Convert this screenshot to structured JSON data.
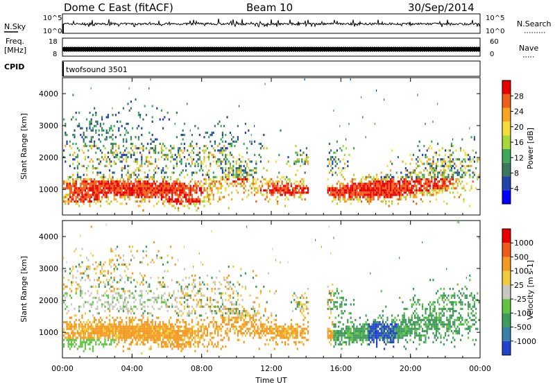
{
  "header": {
    "station": "Dome C East (fitACF)",
    "beam": "Beam 10",
    "date": "30/Sep/2014"
  },
  "noise_panel": {
    "left_label": "N.Sky",
    "right_label": "N.Search",
    "tick_top": "10^5",
    "tick_bottom": "10^0"
  },
  "freq_panel": {
    "left_label_1": "Freq.",
    "left_label_2": "[MHz]",
    "tick_top": "18",
    "tick_bottom": "8",
    "right_label": "Nave",
    "right_tick_top": "60",
    "right_tick_bottom": "0"
  },
  "cpid_panel": {
    "label": "CPID",
    "program": "twofsound 3501"
  },
  "chart_data": [
    {
      "type": "heatmap",
      "name": "power",
      "ylabel": "Slant Range [km]",
      "ylim": [
        200,
        4500
      ],
      "y_ticks": [
        1000,
        2000,
        3000,
        4000
      ],
      "colorbar_label": "Power [dB]",
      "colorbar_ticks": [
        "28",
        "24",
        "20",
        "16",
        "12",
        "8",
        "4"
      ],
      "colors": [
        "#0000ff",
        "#2244aa",
        "#3a7a5c",
        "#3fa65a",
        "#a6d838",
        "#f4dd3a",
        "#f6a623",
        "#f06018",
        "#e80000"
      ]
    },
    {
      "type": "heatmap",
      "name": "velocity",
      "ylabel": "Slant Range [km]",
      "ylim": [
        200,
        4500
      ],
      "y_ticks": [
        1000,
        2000,
        3000,
        4000
      ],
      "colorbar_label": "Velocity [m s-1]",
      "colorbar_ticks": [
        "1000",
        "500",
        "100",
        "25",
        "-25",
        "-100",
        "-500",
        "-1000"
      ],
      "colors": [
        "#2244cc",
        "#3a7fa8",
        "#3f9a5c",
        "#62c542",
        "#c8c8c0",
        "#f0cc3a",
        "#f39a22",
        "#f05a18",
        "#e80000"
      ]
    }
  ],
  "x_axis": {
    "label": "Time UT",
    "ticks": [
      "00:00",
      "04:00",
      "08:00",
      "12:00",
      "16:00",
      "20:00",
      "00:00"
    ]
  }
}
